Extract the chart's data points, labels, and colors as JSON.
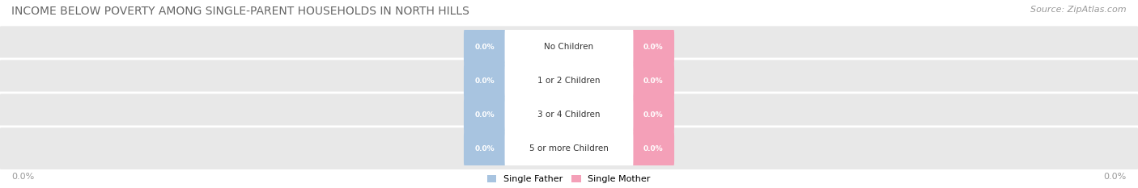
{
  "title": "INCOME BELOW POVERTY AMONG SINGLE-PARENT HOUSEHOLDS IN NORTH HILLS",
  "source": "Source: ZipAtlas.com",
  "categories": [
    "No Children",
    "1 or 2 Children",
    "3 or 4 Children",
    "5 or more Children"
  ],
  "single_father_values": [
    0.0,
    0.0,
    0.0,
    0.0
  ],
  "single_mother_values": [
    0.0,
    0.0,
    0.0,
    0.0
  ],
  "father_color": "#a8c4e0",
  "mother_color": "#f4a0b8",
  "bar_bg_color": "#e8e8e8",
  "title_fontsize": 10,
  "source_fontsize": 8,
  "background_color": "#ffffff",
  "axis_label_left": "0.0%",
  "axis_label_right": "0.0%"
}
